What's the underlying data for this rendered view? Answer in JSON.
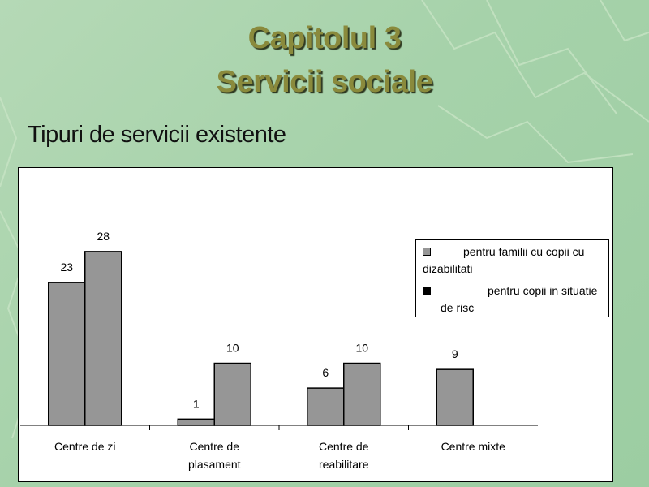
{
  "slide": {
    "title_line1": "Capitolul 3",
    "title_line2": "Servicii sociale",
    "subtitle": "Tipuri de servicii existente"
  },
  "chart_data": {
    "type": "bar",
    "categories": [
      "Centre de zi",
      "Centre de plasament",
      "Centre de reabilitare",
      "Centre mixte"
    ],
    "category_label_lines": [
      [
        "Centre de zi"
      ],
      [
        "Centre de",
        "plasament"
      ],
      [
        "Centre de",
        "reabilitare"
      ],
      [
        "Centre mixte"
      ]
    ],
    "series": [
      {
        "name": "pentru familii cu copii cu dizabilitati",
        "values": [
          23,
          1,
          6,
          9
        ],
        "color": "#969696"
      },
      {
        "name": "pentru copii in situatie de risc",
        "values": [
          28,
          10,
          10,
          null
        ],
        "color": "#969696"
      }
    ],
    "legend_swatch_colors": [
      "#969696",
      "#000000"
    ],
    "data_labels": true,
    "ylim": [
      0,
      34
    ],
    "grid": false,
    "legend_position": "right",
    "title": "",
    "xlabel": "",
    "ylabel": ""
  }
}
